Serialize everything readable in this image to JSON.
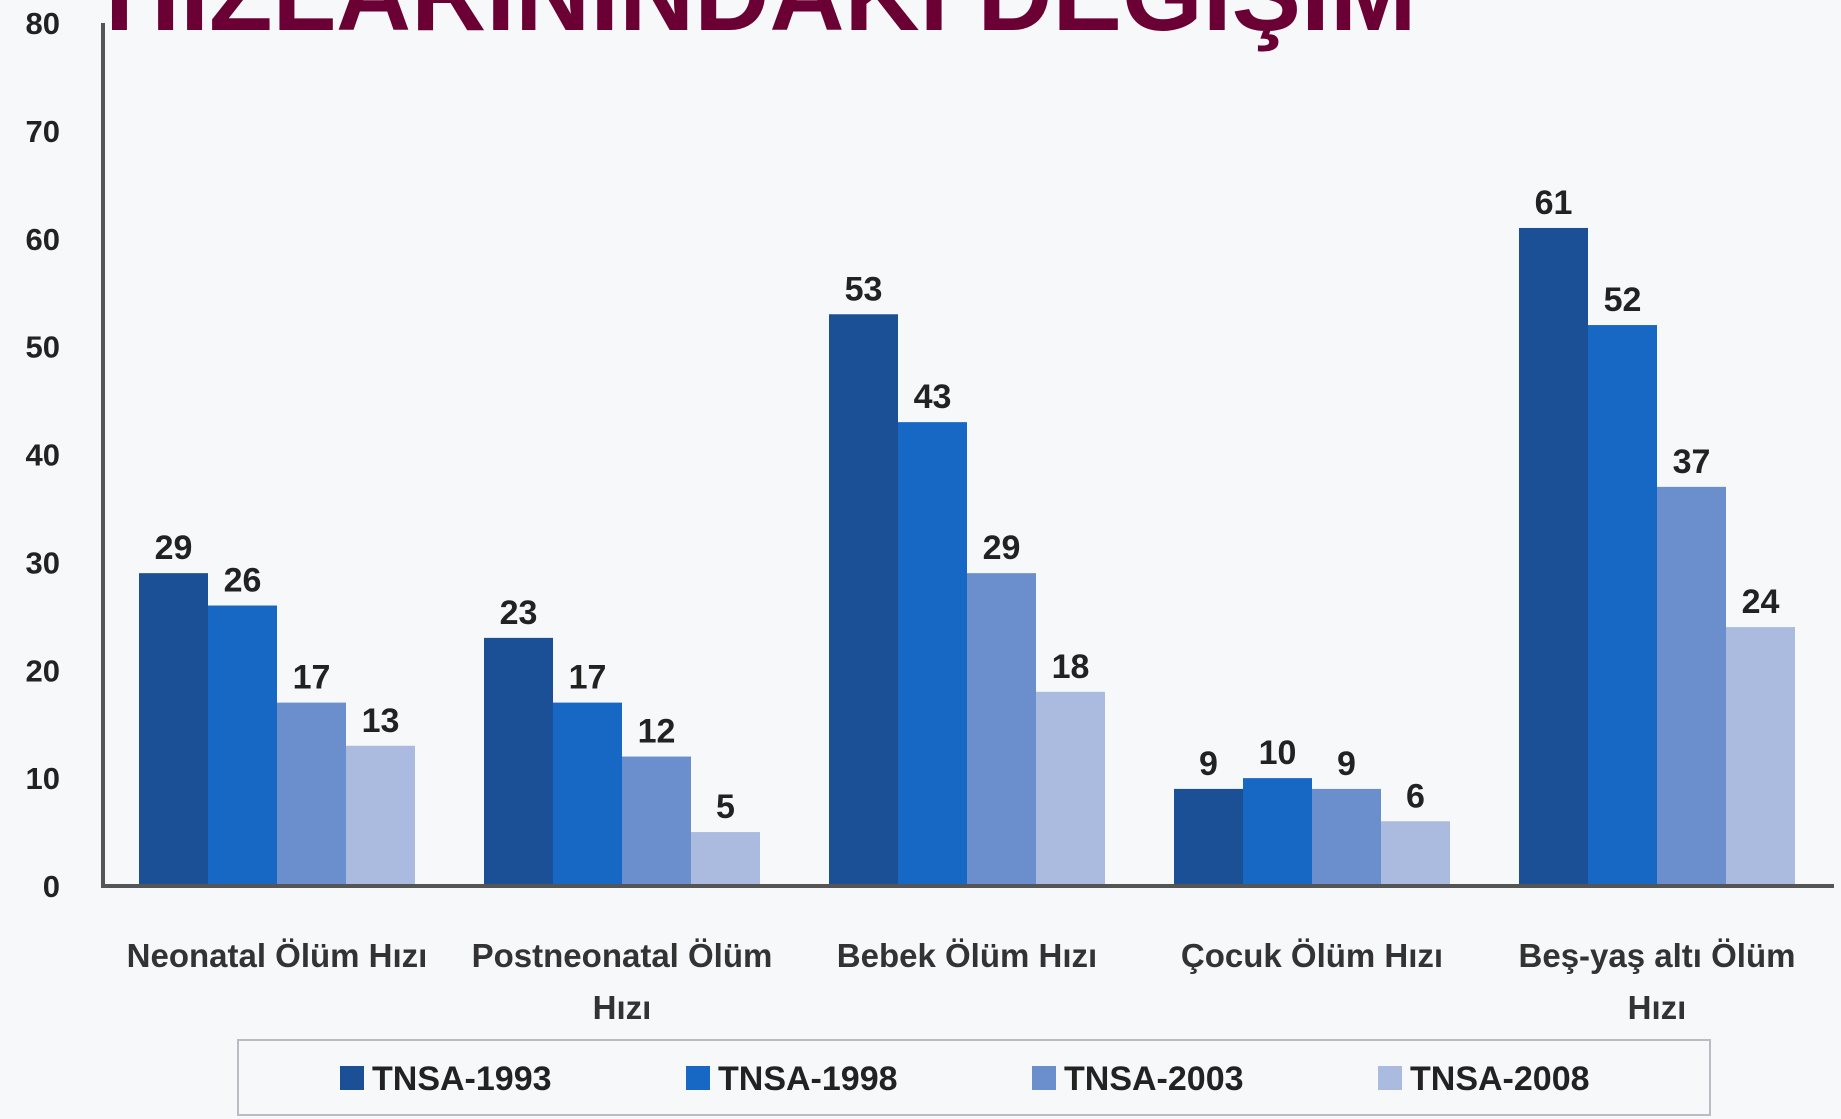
{
  "chart_data": {
    "type": "bar",
    "title": "HIZLARININDAKİ DEĞİŞİM",
    "categories": [
      "Neonatal Ölüm Hızı",
      "Postneonatal Ölüm Hızı",
      "Bebek Ölüm Hızı",
      "Çocuk Ölüm Hızı",
      "Beş-yaş altı Ölüm Hızı"
    ],
    "series": [
      {
        "name": "TNSA-1993",
        "color": "#1b4f96",
        "values": [
          29,
          23,
          53,
          9,
          61
        ]
      },
      {
        "name": "TNSA-1998",
        "color": "#1767c4",
        "values": [
          26,
          17,
          43,
          10,
          52
        ]
      },
      {
        "name": "TNSA-2003",
        "color": "#6b8fcc",
        "values": [
          17,
          12,
          29,
          9,
          37
        ]
      },
      {
        "name": "TNSA-2008",
        "color": "#abbbdf",
        "values": [
          13,
          5,
          18,
          6,
          24
        ]
      }
    ],
    "ylim": [
      0,
      80
    ],
    "yticks": [
      0,
      10,
      20,
      30,
      40,
      50,
      60,
      70,
      80
    ],
    "grid": false,
    "legend": "bottom"
  }
}
